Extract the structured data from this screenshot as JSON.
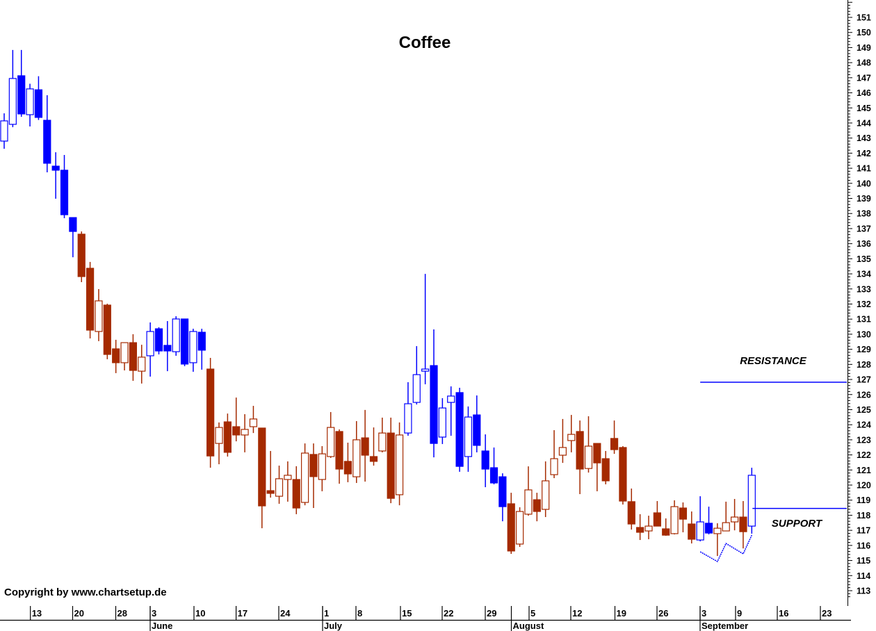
{
  "chart_data": {
    "type": "candlestick",
    "title": "Coffee",
    "copyright": "Copyright by www.chartsetup.de",
    "ylim": [
      112.5,
      152
    ],
    "y_ticks": [
      113,
      114,
      115,
      116,
      117,
      118,
      119,
      120,
      121,
      122,
      123,
      124,
      125,
      126,
      127,
      128,
      129,
      130,
      131,
      132,
      133,
      134,
      135,
      136,
      137,
      138,
      139,
      140,
      141,
      142,
      143,
      144,
      145,
      146,
      147,
      148,
      149,
      150,
      151
    ],
    "grid": false,
    "colors": {
      "blue": "#0000FF",
      "brown": "#A52A00",
      "annotation_line": "#0000FF",
      "text": "#000000"
    },
    "x_axis": {
      "days": [
        "13",
        "20",
        "28",
        "3",
        "10",
        "17",
        "24",
        "1",
        "8",
        "15",
        "22",
        "29",
        "5",
        "12",
        "19",
        "26",
        "3",
        "9",
        "16",
        "23"
      ],
      "months": [
        "June",
        "July",
        "August",
        "September"
      ]
    },
    "candles": [
      {
        "o": 142.8,
        "h": 144.64,
        "l": 142.29,
        "c": 144.14,
        "color": "blue"
      },
      {
        "o": 143.91,
        "h": 148.84,
        "l": 143.72,
        "c": 146.95,
        "color": "blue"
      },
      {
        "o": 147.13,
        "h": 148.84,
        "l": 144.41,
        "c": 144.6,
        "color": "blue"
      },
      {
        "o": 144.55,
        "h": 146.6,
        "l": 143.77,
        "c": 146.26,
        "color": "blue"
      },
      {
        "o": 146.2,
        "h": 147.1,
        "l": 144.2,
        "c": 144.37,
        "color": "blue"
      },
      {
        "o": 144.18,
        "h": 145.84,
        "l": 140.73,
        "c": 141.33,
        "color": "blue"
      },
      {
        "o": 141.14,
        "h": 142.06,
        "l": 138.98,
        "c": 140.87,
        "color": "blue"
      },
      {
        "o": 140.87,
        "h": 141.88,
        "l": 137.69,
        "c": 137.92,
        "color": "blue"
      },
      {
        "o": 137.73,
        "h": 137.73,
        "l": 135.1,
        "c": 136.81,
        "color": "blue"
      },
      {
        "o": 136.63,
        "h": 136.81,
        "l": 133.45,
        "c": 133.82,
        "color": "brown"
      },
      {
        "o": 134.37,
        "h": 134.79,
        "l": 129.72,
        "c": 130.27,
        "color": "brown"
      },
      {
        "o": 130.18,
        "h": 132.99,
        "l": 129.54,
        "c": 132.21,
        "color": "brown"
      },
      {
        "o": 131.93,
        "h": 132.02,
        "l": 128.34,
        "c": 128.66,
        "color": "brown"
      },
      {
        "o": 129.03,
        "h": 129.63,
        "l": 127.42,
        "c": 128.11,
        "color": "brown"
      },
      {
        "o": 128.11,
        "h": 129.44,
        "l": 127.6,
        "c": 129.44,
        "color": "brown"
      },
      {
        "o": 129.44,
        "h": 130.0,
        "l": 126.91,
        "c": 127.6,
        "color": "brown"
      },
      {
        "o": 127.55,
        "h": 129.3,
        "l": 126.73,
        "c": 128.48,
        "color": "brown"
      },
      {
        "o": 128.57,
        "h": 130.78,
        "l": 127.19,
        "c": 130.18,
        "color": "blue"
      },
      {
        "o": 130.36,
        "h": 130.46,
        "l": 128.66,
        "c": 128.89,
        "color": "blue"
      },
      {
        "o": 129.26,
        "h": 130.87,
        "l": 127.55,
        "c": 128.89,
        "color": "blue"
      },
      {
        "o": 128.84,
        "h": 131.19,
        "l": 128.57,
        "c": 131.01,
        "color": "blue"
      },
      {
        "o": 131.01,
        "h": 131.01,
        "l": 127.88,
        "c": 128.02,
        "color": "blue"
      },
      {
        "o": 128.11,
        "h": 130.36,
        "l": 127.51,
        "c": 130.18,
        "color": "blue"
      },
      {
        "o": 130.13,
        "h": 130.36,
        "l": 127.65,
        "c": 128.94,
        "color": "blue"
      },
      {
        "o": 127.69,
        "h": 128.43,
        "l": 121.15,
        "c": 121.93,
        "color": "brown"
      },
      {
        "o": 122.76,
        "h": 124.15,
        "l": 121.38,
        "c": 123.82,
        "color": "brown"
      },
      {
        "o": 124.19,
        "h": 124.74,
        "l": 121.89,
        "c": 122.17,
        "color": "brown"
      },
      {
        "o": 123.87,
        "h": 125.8,
        "l": 122.9,
        "c": 123.32,
        "color": "brown"
      },
      {
        "o": 123.32,
        "h": 124.7,
        "l": 122.17,
        "c": 123.69,
        "color": "brown"
      },
      {
        "o": 123.87,
        "h": 125.25,
        "l": 123.45,
        "c": 124.38,
        "color": "brown"
      },
      {
        "o": 123.78,
        "h": 123.78,
        "l": 117.14,
        "c": 118.62,
        "color": "brown"
      },
      {
        "o": 119.63,
        "h": 122.26,
        "l": 119.17,
        "c": 119.45,
        "color": "brown"
      },
      {
        "o": 119.26,
        "h": 121.29,
        "l": 118.76,
        "c": 120.42,
        "color": "brown"
      },
      {
        "o": 120.37,
        "h": 121.57,
        "l": 118.9,
        "c": 120.65,
        "color": "brown"
      },
      {
        "o": 120.37,
        "h": 121.25,
        "l": 118.07,
        "c": 118.48,
        "color": "brown"
      },
      {
        "o": 118.85,
        "h": 122.76,
        "l": 118.66,
        "c": 122.12,
        "color": "brown"
      },
      {
        "o": 122.03,
        "h": 122.76,
        "l": 118.48,
        "c": 120.56,
        "color": "brown"
      },
      {
        "o": 120.37,
        "h": 122.58,
        "l": 119.59,
        "c": 122.07,
        "color": "brown"
      },
      {
        "o": 121.89,
        "h": 124.84,
        "l": 121.8,
        "c": 123.82,
        "color": "brown"
      },
      {
        "o": 123.55,
        "h": 123.69,
        "l": 120.09,
        "c": 121.06,
        "color": "brown"
      },
      {
        "o": 121.57,
        "h": 122.81,
        "l": 120.19,
        "c": 120.74,
        "color": "brown"
      },
      {
        "o": 120.55,
        "h": 124.24,
        "l": 120.14,
        "c": 123.0,
        "color": "brown"
      },
      {
        "o": 123.13,
        "h": 124.98,
        "l": 120.23,
        "c": 121.98,
        "color": "brown"
      },
      {
        "o": 121.89,
        "h": 123.82,
        "l": 121.29,
        "c": 121.57,
        "color": "brown"
      },
      {
        "o": 122.26,
        "h": 124.47,
        "l": 122.17,
        "c": 123.45,
        "color": "brown"
      },
      {
        "o": 123.45,
        "h": 124.47,
        "l": 118.8,
        "c": 119.12,
        "color": "brown"
      },
      {
        "o": 119.36,
        "h": 124.15,
        "l": 118.66,
        "c": 123.32,
        "color": "brown"
      },
      {
        "o": 123.45,
        "h": 126.82,
        "l": 123.27,
        "c": 125.39,
        "color": "blue"
      },
      {
        "o": 125.48,
        "h": 129.21,
        "l": 125.34,
        "c": 127.32,
        "color": "blue"
      },
      {
        "o": 127.55,
        "h": 134.0,
        "l": 126.68,
        "c": 127.69,
        "color": "blue"
      },
      {
        "o": 127.92,
        "h": 130.32,
        "l": 121.84,
        "c": 122.76,
        "color": "blue"
      },
      {
        "o": 123.18,
        "h": 125.76,
        "l": 122.72,
        "c": 125.11,
        "color": "blue"
      },
      {
        "o": 125.48,
        "h": 126.54,
        "l": 123.27,
        "c": 125.9,
        "color": "blue"
      },
      {
        "o": 126.13,
        "h": 126.45,
        "l": 120.88,
        "c": 121.24,
        "color": "blue"
      },
      {
        "o": 121.89,
        "h": 125.21,
        "l": 120.88,
        "c": 124.51,
        "color": "blue"
      },
      {
        "o": 124.65,
        "h": 125.94,
        "l": 122.17,
        "c": 122.63,
        "color": "blue"
      },
      {
        "o": 122.26,
        "h": 123.36,
        "l": 119.86,
        "c": 121.06,
        "color": "blue"
      },
      {
        "o": 121.15,
        "h": 122.49,
        "l": 120.05,
        "c": 120.14,
        "color": "blue"
      },
      {
        "o": 120.55,
        "h": 120.78,
        "l": 117.6,
        "c": 118.57,
        "color": "blue"
      },
      {
        "o": 118.76,
        "h": 119.49,
        "l": 115.44,
        "c": 115.63,
        "color": "brown"
      },
      {
        "o": 116.09,
        "h": 118.53,
        "l": 115.9,
        "c": 118.25,
        "color": "brown"
      },
      {
        "o": 118.07,
        "h": 121.24,
        "l": 117.97,
        "c": 119.68,
        "color": "brown"
      },
      {
        "o": 119.03,
        "h": 119.49,
        "l": 117.6,
        "c": 118.25,
        "color": "brown"
      },
      {
        "o": 118.39,
        "h": 121.57,
        "l": 117.88,
        "c": 120.28,
        "color": "brown"
      },
      {
        "o": 120.69,
        "h": 123.64,
        "l": 120.46,
        "c": 121.75,
        "color": "brown"
      },
      {
        "o": 121.98,
        "h": 124.38,
        "l": 121.47,
        "c": 122.49,
        "color": "brown"
      },
      {
        "o": 122.95,
        "h": 124.65,
        "l": 122.17,
        "c": 123.36,
        "color": "brown"
      },
      {
        "o": 123.55,
        "h": 124.28,
        "l": 119.4,
        "c": 121.06,
        "color": "brown"
      },
      {
        "o": 121.1,
        "h": 124.56,
        "l": 120.83,
        "c": 122.58,
        "color": "brown"
      },
      {
        "o": 122.76,
        "h": 122.76,
        "l": 119.59,
        "c": 121.47,
        "color": "brown"
      },
      {
        "o": 121.75,
        "h": 122.26,
        "l": 120.05,
        "c": 120.28,
        "color": "brown"
      },
      {
        "o": 123.09,
        "h": 124.28,
        "l": 122.07,
        "c": 122.35,
        "color": "brown"
      },
      {
        "o": 122.49,
        "h": 122.58,
        "l": 118.71,
        "c": 118.94,
        "color": "brown"
      },
      {
        "o": 118.9,
        "h": 119.77,
        "l": 117.05,
        "c": 117.42,
        "color": "brown"
      },
      {
        "o": 117.19,
        "h": 118.07,
        "l": 116.36,
        "c": 116.87,
        "color": "brown"
      },
      {
        "o": 116.96,
        "h": 117.97,
        "l": 116.41,
        "c": 117.28,
        "color": "brown"
      },
      {
        "o": 118.16,
        "h": 118.94,
        "l": 117.28,
        "c": 117.28,
        "color": "brown"
      },
      {
        "o": 117.1,
        "h": 117.79,
        "l": 116.64,
        "c": 116.68,
        "color": "brown"
      },
      {
        "o": 116.78,
        "h": 118.99,
        "l": 116.73,
        "c": 118.57,
        "color": "brown"
      },
      {
        "o": 118.48,
        "h": 118.85,
        "l": 116.87,
        "c": 117.74,
        "color": "brown"
      },
      {
        "o": 117.42,
        "h": 118.25,
        "l": 116.13,
        "c": 116.41,
        "color": "brown"
      },
      {
        "o": 116.36,
        "h": 119.26,
        "l": 116.27,
        "c": 117.56,
        "color": "blue"
      },
      {
        "o": 117.47,
        "h": 118.57,
        "l": 116.73,
        "c": 116.82,
        "color": "blue"
      },
      {
        "o": 116.78,
        "h": 117.47,
        "l": 115.3,
        "c": 117.14,
        "color": "brown"
      },
      {
        "o": 116.96,
        "h": 118.9,
        "l": 116.96,
        "c": 117.51,
        "color": "brown"
      },
      {
        "o": 117.56,
        "h": 119.08,
        "l": 117.0,
        "c": 117.88,
        "color": "brown"
      },
      {
        "o": 117.88,
        "h": 118.94,
        "l": 115.8,
        "c": 116.91,
        "color": "brown"
      },
      {
        "o": 117.28,
        "h": 121.15,
        "l": 116.78,
        "c": 120.65,
        "color": "blue"
      }
    ],
    "annotations": {
      "resistance": {
        "label": "RESISTANCE",
        "price": 126.82,
        "from_candle": 82
      },
      "support": {
        "label": "SUPPORT",
        "price": 118.45,
        "from_candle": 88
      },
      "trendline": [
        {
          "candle": 82,
          "price": 115.58
        },
        {
          "candle": 84,
          "price": 114.93
        },
        {
          "candle": 85,
          "price": 116.13
        },
        {
          "candle": 87,
          "price": 115.44
        },
        {
          "candle": 88,
          "price": 116.68
        }
      ]
    }
  }
}
